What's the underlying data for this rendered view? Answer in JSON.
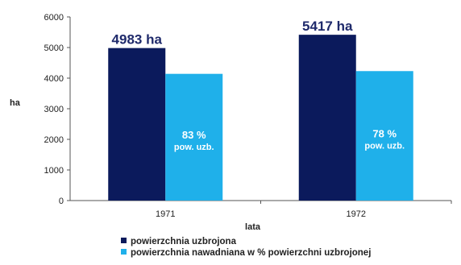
{
  "chart_data": {
    "type": "bar",
    "title": "",
    "xlabel": "lata",
    "ylabel": "ha",
    "ylim": [
      0,
      6000
    ],
    "yticks": [
      0,
      1000,
      2000,
      3000,
      4000,
      5000,
      6000
    ],
    "grid": false,
    "legend_placement": "bottom-left",
    "categories": [
      "1971",
      "1972"
    ],
    "series": [
      {
        "name": "powierzchnia uzbrojona",
        "color": "#0b1a5c",
        "values": [
          4983,
          5417
        ],
        "data_labels": [
          "4983 ha",
          "5417 ha"
        ]
      },
      {
        "name": "powierzchnia nawadniana w % powierzchni uzbrojonej",
        "color": "#1fb0ea",
        "values": [
          4140,
          4230
        ],
        "data_labels": [
          "83 %",
          "78 %"
        ],
        "data_sublabels": [
          "pow. uzb.",
          "pow. uzb."
        ]
      }
    ]
  }
}
